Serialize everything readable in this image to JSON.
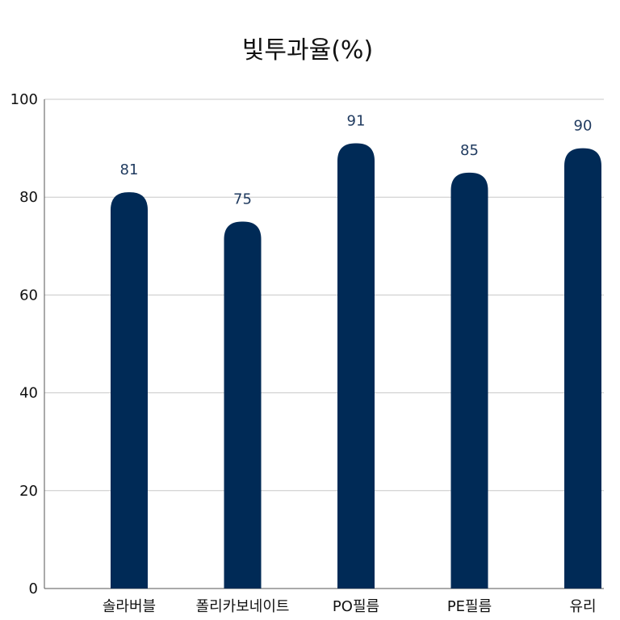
{
  "chart_data": {
    "type": "bar",
    "title": "빛투과율(%)",
    "categories": [
      "솔라버블",
      "폴리카보네이트",
      "PO필름",
      "PE필름",
      "유리"
    ],
    "values": [
      81,
      75,
      91,
      85,
      90
    ],
    "ylim": [
      0,
      100
    ],
    "yticks": [
      0,
      20,
      40,
      60,
      80,
      100
    ],
    "grid": true,
    "legend": "none",
    "bar_color": "#002a56",
    "data_label_color": "#1f3a5f"
  }
}
